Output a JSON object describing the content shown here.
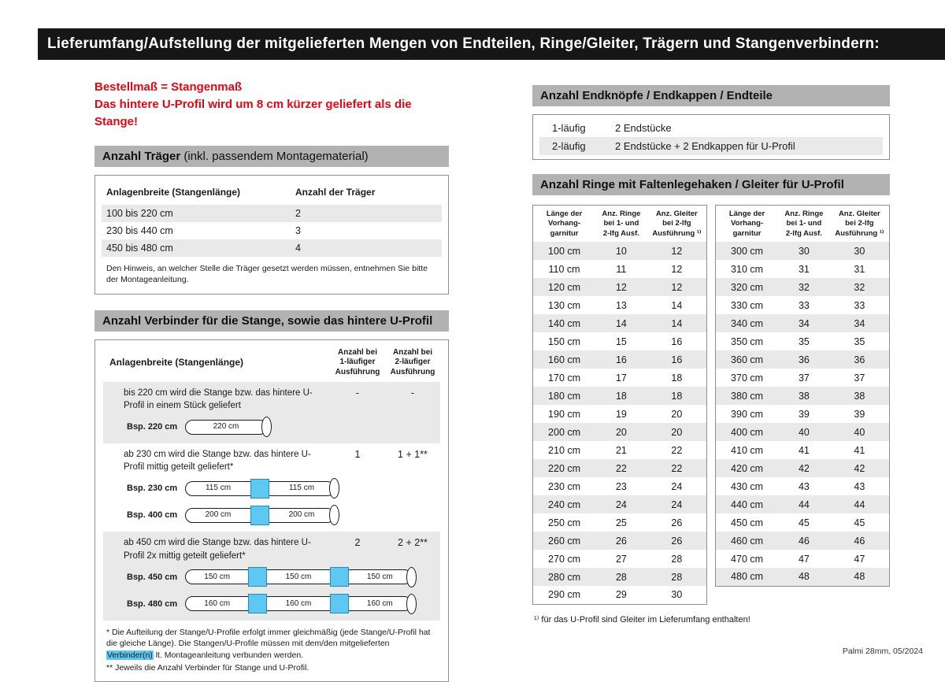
{
  "colors": {
    "accent_red": "#e30613",
    "header_black": "#161616",
    "section_gray": "#b2b2b2",
    "row_stripe": "#e9e9e9",
    "connector_blue": "#5ec8f2",
    "border_gray": "#8f8f8f"
  },
  "header": {
    "title": "Lieferumfang/Aufstellung der mitgelieferten Mengen von Endteilen, Ringe/Gleiter, Trägern und Stangenverbindern:"
  },
  "notice": {
    "line1": "Bestellmaß = Stangenmaß",
    "line2": "Das hintere U-Profil wird um 8 cm kürzer geliefert als die Stange!"
  },
  "traeger": {
    "title_bold": "Anzahl Träger",
    "title_rest": " (inkl. passendem Montagematerial)",
    "col1": "Anlagenbreite (Stangenlänge)",
    "col2": "Anzahl der Träger",
    "rows": [
      {
        "range": "100 bis 220 cm",
        "count": "2"
      },
      {
        "range": "230 bis 440 cm",
        "count": "3"
      },
      {
        "range": "450 bis 480 cm",
        "count": "4"
      }
    ],
    "note": "Den Hinweis, an welcher Stelle die Träger gesetzt werden müssen, entnehmen Sie bitte der Montageanleitung."
  },
  "verbinder": {
    "title": "Anzahl Verbinder für die Stange, sowie das hintere U-Profil",
    "col1": "Anlagenbreite (Stangenlänge)",
    "col2": "Anzahl bei\n1-läufiger\nAusführung",
    "col3": "Anzahl bei\n2-läufiger\nAusführung",
    "blocks": [
      {
        "text": "bis 220 cm wird die Stange bzw. das hintere U-Profil in einem Stück geliefert",
        "val1": "-",
        "val2": "-",
        "examples": [
          {
            "label": "Bsp. 220 cm",
            "segments": [
              "220 cm"
            ]
          }
        ]
      },
      {
        "text": "ab 230 cm wird die Stange bzw. das hintere U-Profil mittig geteilt geliefert*",
        "val1": "1",
        "val2": "1 + 1**",
        "examples": [
          {
            "label": "Bsp. 230 cm",
            "segments": [
              "115 cm",
              "115 cm"
            ]
          },
          {
            "label": "Bsp. 400 cm",
            "segments": [
              "200 cm",
              "200 cm"
            ]
          }
        ]
      },
      {
        "text": "ab 450 cm wird die Stange bzw. das hintere U-Profil 2x mittig geteilt geliefert*",
        "val1": "2",
        "val2": "2 + 2**",
        "examples": [
          {
            "label": "Bsp. 450 cm",
            "segments": [
              "150 cm",
              "150 cm",
              "150 cm"
            ]
          },
          {
            "label": "Bsp. 480 cm",
            "segments": [
              "160 cm",
              "160 cm",
              "160 cm"
            ]
          }
        ]
      }
    ],
    "footnote1_pre": "* Die Aufteilung der Stange/U-Profile erfolgt immer gleichmäßig (jede Stange/U-Profil hat die gleiche Länge). Die Stangen/U-Profile müssen mit dem/den mitgelieferten ",
    "footnote1_hl": "Verbinder(n)",
    "footnote1_post": " lt. Montageanleitung verbunden werden.",
    "footnote2": "** Jeweils die Anzahl Verbinder für Stange und U-Profil."
  },
  "endteile": {
    "title": "Anzahl Endknöpfe / Endkappen / Endteile",
    "rows": [
      {
        "type": "1-läufig",
        "desc": "2 Endstücke"
      },
      {
        "type": "2-läufig",
        "desc": "2 Endstücke + 2 Endkappen für U-Profil"
      }
    ]
  },
  "ringe": {
    "title": "Anzahl Ringe mit Faltenlegehaken / Gleiter für U-Profil",
    "col1": "Länge der\nVorhang-\ngarnitur",
    "col2": "Anz. Ringe\nbei 1- und\n2-lfg Ausf.",
    "col3": "Anz. Gleiter\nbei 2-lfg\nAusführung ¹⁾",
    "left_rows": [
      [
        "100 cm",
        "10",
        "12"
      ],
      [
        "110 cm",
        "11",
        "12"
      ],
      [
        "120 cm",
        "12",
        "12"
      ],
      [
        "130 cm",
        "13",
        "14"
      ],
      [
        "140 cm",
        "14",
        "14"
      ],
      [
        "150 cm",
        "15",
        "16"
      ],
      [
        "160 cm",
        "16",
        "16"
      ],
      [
        "170 cm",
        "17",
        "18"
      ],
      [
        "180 cm",
        "18",
        "18"
      ],
      [
        "190 cm",
        "19",
        "20"
      ],
      [
        "200 cm",
        "20",
        "20"
      ],
      [
        "210 cm",
        "21",
        "22"
      ],
      [
        "220 cm",
        "22",
        "22"
      ],
      [
        "230 cm",
        "23",
        "24"
      ],
      [
        "240 cm",
        "24",
        "24"
      ],
      [
        "250 cm",
        "25",
        "26"
      ],
      [
        "260 cm",
        "26",
        "26"
      ],
      [
        "270 cm",
        "27",
        "28"
      ],
      [
        "280 cm",
        "28",
        "28"
      ],
      [
        "290 cm",
        "29",
        "30"
      ]
    ],
    "right_rows": [
      [
        "300 cm",
        "30",
        "30"
      ],
      [
        "310 cm",
        "31",
        "31"
      ],
      [
        "320 cm",
        "32",
        "32"
      ],
      [
        "330 cm",
        "33",
        "33"
      ],
      [
        "340 cm",
        "34",
        "34"
      ],
      [
        "350 cm",
        "35",
        "35"
      ],
      [
        "360 cm",
        "36",
        "36"
      ],
      [
        "370 cm",
        "37",
        "37"
      ],
      [
        "380 cm",
        "38",
        "38"
      ],
      [
        "390 cm",
        "39",
        "39"
      ],
      [
        "400 cm",
        "40",
        "40"
      ],
      [
        "410 cm",
        "41",
        "41"
      ],
      [
        "420 cm",
        "42",
        "42"
      ],
      [
        "430 cm",
        "43",
        "43"
      ],
      [
        "440 cm",
        "44",
        "44"
      ],
      [
        "450 cm",
        "45",
        "45"
      ],
      [
        "460 cm",
        "46",
        "46"
      ],
      [
        "470 cm",
        "47",
        "47"
      ],
      [
        "480 cm",
        "48",
        "48"
      ]
    ],
    "footnote": "¹⁾ für das U-Profil sind Gleiter im Lieferumfang enthalten!"
  },
  "footer": {
    "text": "Palmi 28mm, 05/2024"
  }
}
